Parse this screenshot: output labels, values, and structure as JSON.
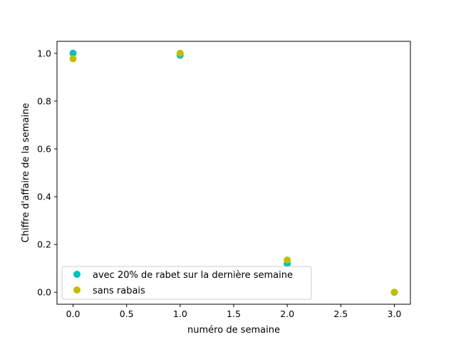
{
  "chart_data": {
    "type": "scatter",
    "title": "",
    "xlabel": "numéro de semaine",
    "ylabel": "Chiffre d'affaire de la semaine",
    "xlim": [
      -0.15,
      3.15
    ],
    "ylim": [
      -0.05,
      1.05
    ],
    "xticks": [
      0.0,
      0.5,
      1.0,
      1.5,
      2.0,
      2.5,
      3.0
    ],
    "xtick_labels": [
      "0.0",
      "0.5",
      "1.0",
      "1.5",
      "2.0",
      "2.5",
      "3.0"
    ],
    "yticks": [
      0.0,
      0.2,
      0.4,
      0.6,
      0.8,
      1.0
    ],
    "ytick_labels": [
      "0.0",
      "0.2",
      "0.4",
      "0.6",
      "0.8",
      "1.0"
    ],
    "grid": false,
    "legend_position": "lower-left",
    "series": [
      {
        "name": "avec 20% de rabet sur la dernière semaine",
        "color": "#00bfbf",
        "x": [
          0,
          1,
          2,
          3
        ],
        "y": [
          1.0,
          0.992,
          0.12,
          0.0
        ]
      },
      {
        "name": "sans rabais",
        "color": "#bfbf00",
        "x": [
          0,
          1,
          2,
          3
        ],
        "y": [
          0.977,
          1.0,
          0.135,
          0.0
        ]
      }
    ]
  }
}
